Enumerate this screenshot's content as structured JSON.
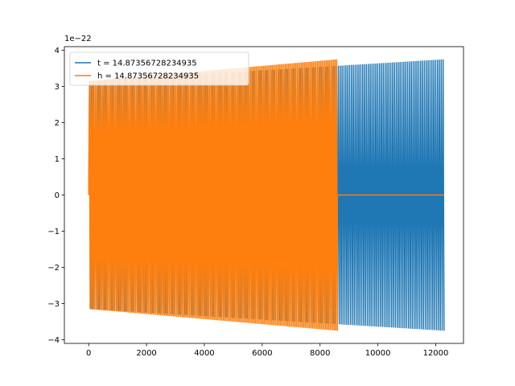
{
  "chart_data": {
    "type": "line",
    "title": "",
    "xlabel": "",
    "ylabel": "",
    "offset_text": "1e−22",
    "xlim": [
      -840,
      12960
    ],
    "ylim": [
      -4.1,
      4.1
    ],
    "xticks": [
      0,
      2000,
      4000,
      6000,
      8000,
      10000,
      12000
    ],
    "xtick_labels": [
      "0",
      "2000",
      "4000",
      "6000",
      "8000",
      "10000",
      "12000"
    ],
    "yticks": [
      -4,
      -3,
      -2,
      -1,
      0,
      1,
      2,
      3,
      4
    ],
    "ytick_labels": [
      "−4",
      "−3",
      "−2",
      "−1",
      "0",
      "1",
      "2",
      "3",
      "4"
    ],
    "grid": false,
    "legend_position": "top-left",
    "series": [
      {
        "name": "t = 14.87356728234935",
        "color": "#1f77b4",
        "x_start": 0,
        "x_end": 12288,
        "amplitude_start": 3.15,
        "amplitude_end": 3.75,
        "cycles": 190
      },
      {
        "name": "h = 14.87356728234935",
        "color": "#ff7f0e",
        "x_start": 0,
        "x_end": 8600,
        "amplitude_start": 3.15,
        "amplitude_end": 3.75,
        "cycles": 170,
        "flat_until": 12288
      }
    ]
  }
}
